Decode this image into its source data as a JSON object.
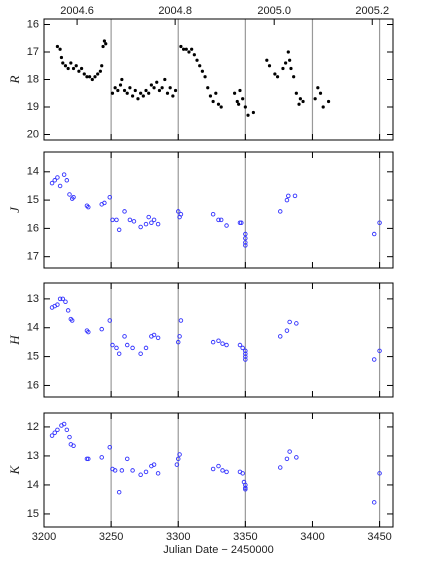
{
  "chart_data": [
    {
      "type": "scatter",
      "ylabel": "R",
      "marker": "dot",
      "color": "#000000",
      "xlim": [
        3200,
        3460
      ],
      "ylim": [
        20.2,
        15.8
      ],
      "yticks": [
        16,
        17,
        18,
        19,
        20
      ],
      "x2ticks": [
        {
          "value": 3224.65,
          "label": "2004.6"
        },
        {
          "value": 3297.7,
          "label": "2004.8"
        },
        {
          "value": 3371.5,
          "label": "2005.0"
        },
        {
          "value": 3444.55,
          "label": "2005.2"
        }
      ],
      "vlines": [
        3250,
        3300,
        3350,
        3400,
        3450
      ],
      "x": [
        3210,
        3212,
        3213,
        3214,
        3216,
        3218,
        3220,
        3222,
        3224,
        3226,
        3228,
        3230,
        3232,
        3234,
        3236,
        3238,
        3240,
        3242,
        3243,
        3244,
        3245,
        3246,
        3251,
        3253,
        3255,
        3257,
        3258,
        3260,
        3262,
        3264,
        3266,
        3268,
        3270,
        3272,
        3274,
        3276,
        3278,
        3280,
        3282,
        3284,
        3286,
        3288,
        3290,
        3292,
        3294,
        3296,
        3298,
        3302,
        3304,
        3306,
        3308,
        3310,
        3312,
        3314,
        3316,
        3318,
        3320,
        3322,
        3324,
        3326,
        3328,
        3330,
        3332,
        3342,
        3344,
        3345,
        3346,
        3348,
        3350,
        3352,
        3356,
        3366,
        3368,
        3372,
        3374,
        3378,
        3380,
        3382,
        3383,
        3384,
        3386,
        3388,
        3390,
        3391,
        3393,
        3402,
        3404,
        3406,
        3408,
        3412
      ],
      "values": [
        16.8,
        16.9,
        17.2,
        17.4,
        17.5,
        17.6,
        17.4,
        17.6,
        17.5,
        17.7,
        17.6,
        17.8,
        17.9,
        17.9,
        18.0,
        17.9,
        17.8,
        17.7,
        17.5,
        16.8,
        16.6,
        16.7,
        18.5,
        18.3,
        18.4,
        18.2,
        18.0,
        18.4,
        18.5,
        18.3,
        18.6,
        18.4,
        18.7,
        18.5,
        18.6,
        18.4,
        18.5,
        18.2,
        18.3,
        18.1,
        18.4,
        18.3,
        18.0,
        18.5,
        18.3,
        18.6,
        18.4,
        16.8,
        16.9,
        16.9,
        17.0,
        16.9,
        17.1,
        17.3,
        17.5,
        17.7,
        17.9,
        18.3,
        18.6,
        18.8,
        18.5,
        18.9,
        19.0,
        18.5,
        18.8,
        18.9,
        18.4,
        18.7,
        19.0,
        19.3,
        19.2,
        17.3,
        17.5,
        17.8,
        17.9,
        17.6,
        17.4,
        17.0,
        17.3,
        17.6,
        17.9,
        18.5,
        18.9,
        18.7,
        18.8,
        18.7,
        18.3,
        18.5,
        19.0,
        18.8
      ]
    },
    {
      "type": "scatter",
      "ylabel": "J",
      "marker": "circle",
      "color": "#3333ff",
      "xlim": [
        3200,
        3460
      ],
      "ylim": [
        17.4,
        13.3
      ],
      "yticks": [
        14,
        15,
        16,
        17
      ],
      "vlines": [
        3250,
        3300,
        3350,
        3450
      ],
      "x": [
        3206,
        3208,
        3210,
        3212,
        3215,
        3217,
        3219,
        3221,
        3222,
        3232,
        3233,
        3243,
        3245,
        3249,
        3251,
        3254,
        3256,
        3260,
        3264,
        3267,
        3272,
        3276,
        3278,
        3280,
        3282,
        3285,
        3300,
        3301,
        3302,
        3326,
        3330,
        3332,
        3336,
        3346,
        3347,
        3350,
        3350,
        3350,
        3350,
        3376,
        3381,
        3382,
        3387,
        3446,
        3450
      ],
      "values": [
        14.4,
        14.3,
        14.2,
        14.5,
        14.1,
        14.3,
        14.8,
        14.95,
        14.9,
        15.2,
        15.25,
        15.15,
        15.1,
        14.9,
        15.7,
        15.7,
        16.05,
        15.4,
        15.7,
        15.75,
        15.95,
        15.85,
        15.6,
        15.8,
        15.7,
        15.85,
        15.4,
        15.6,
        15.5,
        15.5,
        15.7,
        15.7,
        15.9,
        15.8,
        15.8,
        16.2,
        16.35,
        16.5,
        16.6,
        15.4,
        15.0,
        14.85,
        14.85,
        16.2,
        15.8
      ]
    },
    {
      "type": "scatter",
      "ylabel": "H",
      "marker": "circle",
      "color": "#3333ff",
      "xlim": [
        3200,
        3460
      ],
      "ylim": [
        16.4,
        12.45
      ],
      "yticks": [
        13,
        14,
        15,
        16
      ],
      "vlines": [
        3250,
        3300,
        3350,
        3450
      ],
      "x": [
        3206,
        3208,
        3210,
        3212,
        3214,
        3216,
        3218,
        3220,
        3221,
        3232,
        3233,
        3243,
        3249,
        3251,
        3254,
        3256,
        3260,
        3262,
        3266,
        3272,
        3276,
        3280,
        3282,
        3285,
        3300,
        3301,
        3302,
        3326,
        3330,
        3333,
        3336,
        3346,
        3348,
        3350,
        3350,
        3350,
        3350,
        3376,
        3381,
        3383,
        3388,
        3446,
        3450
      ],
      "values": [
        13.3,
        13.25,
        13.2,
        13.0,
        13.0,
        13.1,
        13.4,
        13.7,
        13.75,
        14.1,
        14.15,
        14.05,
        13.75,
        14.6,
        14.7,
        14.9,
        14.3,
        14.6,
        14.7,
        14.9,
        14.7,
        14.3,
        14.25,
        14.35,
        14.5,
        14.3,
        13.75,
        14.5,
        14.45,
        14.55,
        14.6,
        14.6,
        14.7,
        14.8,
        14.9,
        15.0,
        15.1,
        14.3,
        14.1,
        13.8,
        13.85,
        15.1,
        14.8
      ]
    },
    {
      "type": "scatter",
      "ylabel": "K",
      "marker": "circle",
      "color": "#3333ff",
      "xlim": [
        3200,
        3460
      ],
      "ylim": [
        15.45,
        11.52
      ],
      "yticks": [
        12,
        13,
        14,
        15
      ],
      "xticks": [
        3200,
        3250,
        3300,
        3350,
        3400,
        3450
      ],
      "xlabel": "Julian Date − 2450000",
      "vlines": [
        3250,
        3300,
        3350,
        3450
      ],
      "x": [
        3206,
        3208,
        3210,
        3213,
        3215,
        3217,
        3219,
        3220,
        3222,
        3232,
        3233,
        3243,
        3249,
        3251,
        3253,
        3256,
        3258,
        3262,
        3266,
        3272,
        3276,
        3280,
        3282,
        3285,
        3299,
        3300,
        3301,
        3326,
        3330,
        3333,
        3336,
        3346,
        3348,
        3349,
        3350,
        3350,
        3350,
        3376,
        3381,
        3383,
        3388,
        3446,
        3450
      ],
      "values": [
        12.3,
        12.2,
        12.1,
        11.95,
        11.9,
        12.1,
        12.35,
        12.6,
        12.65,
        13.1,
        13.1,
        13.05,
        12.7,
        13.45,
        13.5,
        14.25,
        13.5,
        13.1,
        13.5,
        13.65,
        13.55,
        13.35,
        13.3,
        13.6,
        13.3,
        13.1,
        12.95,
        13.45,
        13.35,
        13.5,
        13.55,
        13.55,
        13.6,
        13.9,
        14.0,
        14.1,
        14.15,
        13.4,
        13.1,
        12.85,
        13.05,
        14.6,
        13.6
      ]
    }
  ]
}
